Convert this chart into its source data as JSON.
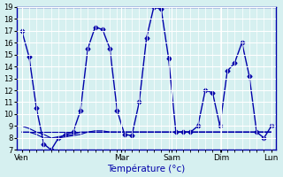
{
  "xlabel": "Température (°c)",
  "ylabel": "",
  "background_color": "#d6f0f0",
  "grid_color": "#ffffff",
  "line_color": "#0000aa",
  "ylim": [
    7,
    19
  ],
  "yticks": [
    7,
    8,
    9,
    10,
    11,
    12,
    13,
    14,
    15,
    16,
    17,
    18,
    19
  ],
  "day_labels": [
    "Ven",
    "Mar",
    "Sam",
    "Dim",
    "Lun"
  ],
  "day_positions": [
    0,
    40,
    60,
    80,
    100
  ],
  "lines": [
    [
      17,
      14.8,
      10.5,
      7.5,
      7.0,
      8.0,
      8.3,
      8.5,
      10.3,
      15.5,
      17.3,
      17.1,
      15.5,
      10.3,
      8.3,
      8.2,
      11.0,
      16.4,
      19.0,
      18.8,
      14.7,
      8.5,
      8.5,
      8.5,
      9.0,
      12.0,
      11.8,
      9.0,
      13.6,
      14.3,
      16.0,
      13.2,
      8.5,
      8.0,
      9.0
    ],
    [
      8.5,
      8.5,
      8.5,
      8.5,
      8.5,
      8.5,
      8.5,
      8.5,
      8.5,
      8.5,
      8.5,
      8.5,
      8.5,
      8.5,
      8.5,
      8.5,
      8.5,
      8.5,
      8.5,
      8.5,
      8.5,
      8.5,
      8.5,
      8.5,
      8.5,
      8.5,
      8.5,
      8.5,
      8.5,
      8.5,
      8.5,
      8.5,
      8.5,
      8.5,
      8.5
    ],
    [
      8.5,
      8.5,
      8.3,
      8.0,
      8.0,
      8.1,
      8.2,
      8.3,
      8.5,
      8.5,
      8.5,
      8.5,
      8.5,
      8.5,
      8.5,
      8.5,
      8.5,
      8.5,
      8.5,
      8.5,
      8.5,
      8.5,
      8.5,
      8.5,
      8.5,
      8.5,
      8.5,
      8.5,
      8.5,
      8.5,
      8.5,
      8.5,
      8.5,
      8.5,
      8.5
    ],
    [
      9.0,
      8.8,
      8.5,
      8.3,
      8.0,
      8.0,
      8.1,
      8.2,
      8.3,
      8.5,
      8.6,
      8.6,
      8.5,
      8.5,
      8.5,
      8.5,
      8.5,
      8.5,
      8.5,
      8.5,
      8.5,
      8.5,
      8.5,
      8.5,
      8.5,
      8.5,
      8.5,
      8.5,
      8.5,
      8.5,
      8.5,
      8.5,
      8.5,
      8.5,
      8.5
    ]
  ],
  "n_points": 35
}
